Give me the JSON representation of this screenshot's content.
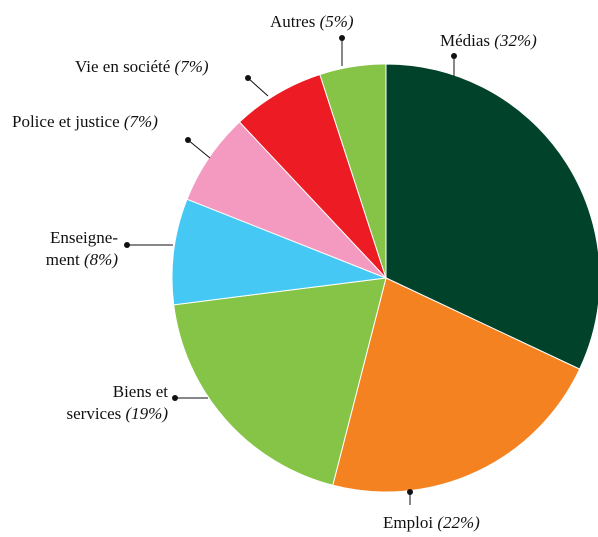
{
  "chart_data": {
    "type": "pie",
    "categories": [
      "Médias",
      "Emploi",
      "Biens et\nservices",
      "Enseigne-\nment",
      "Police et justice",
      "Vie en société",
      "Autres"
    ],
    "values": [
      32,
      22,
      19,
      8,
      7,
      7,
      5
    ],
    "value_labels": [
      "(32%)",
      "(22%)",
      "(19%)",
      "(8%)",
      "(7%)",
      "(7%)",
      "(5%)"
    ],
    "colors": [
      "#00432a",
      "#f58220",
      "#85c446",
      "#46c8f5",
      "#f49ac1",
      "#ed1c24",
      "#85c446"
    ]
  }
}
